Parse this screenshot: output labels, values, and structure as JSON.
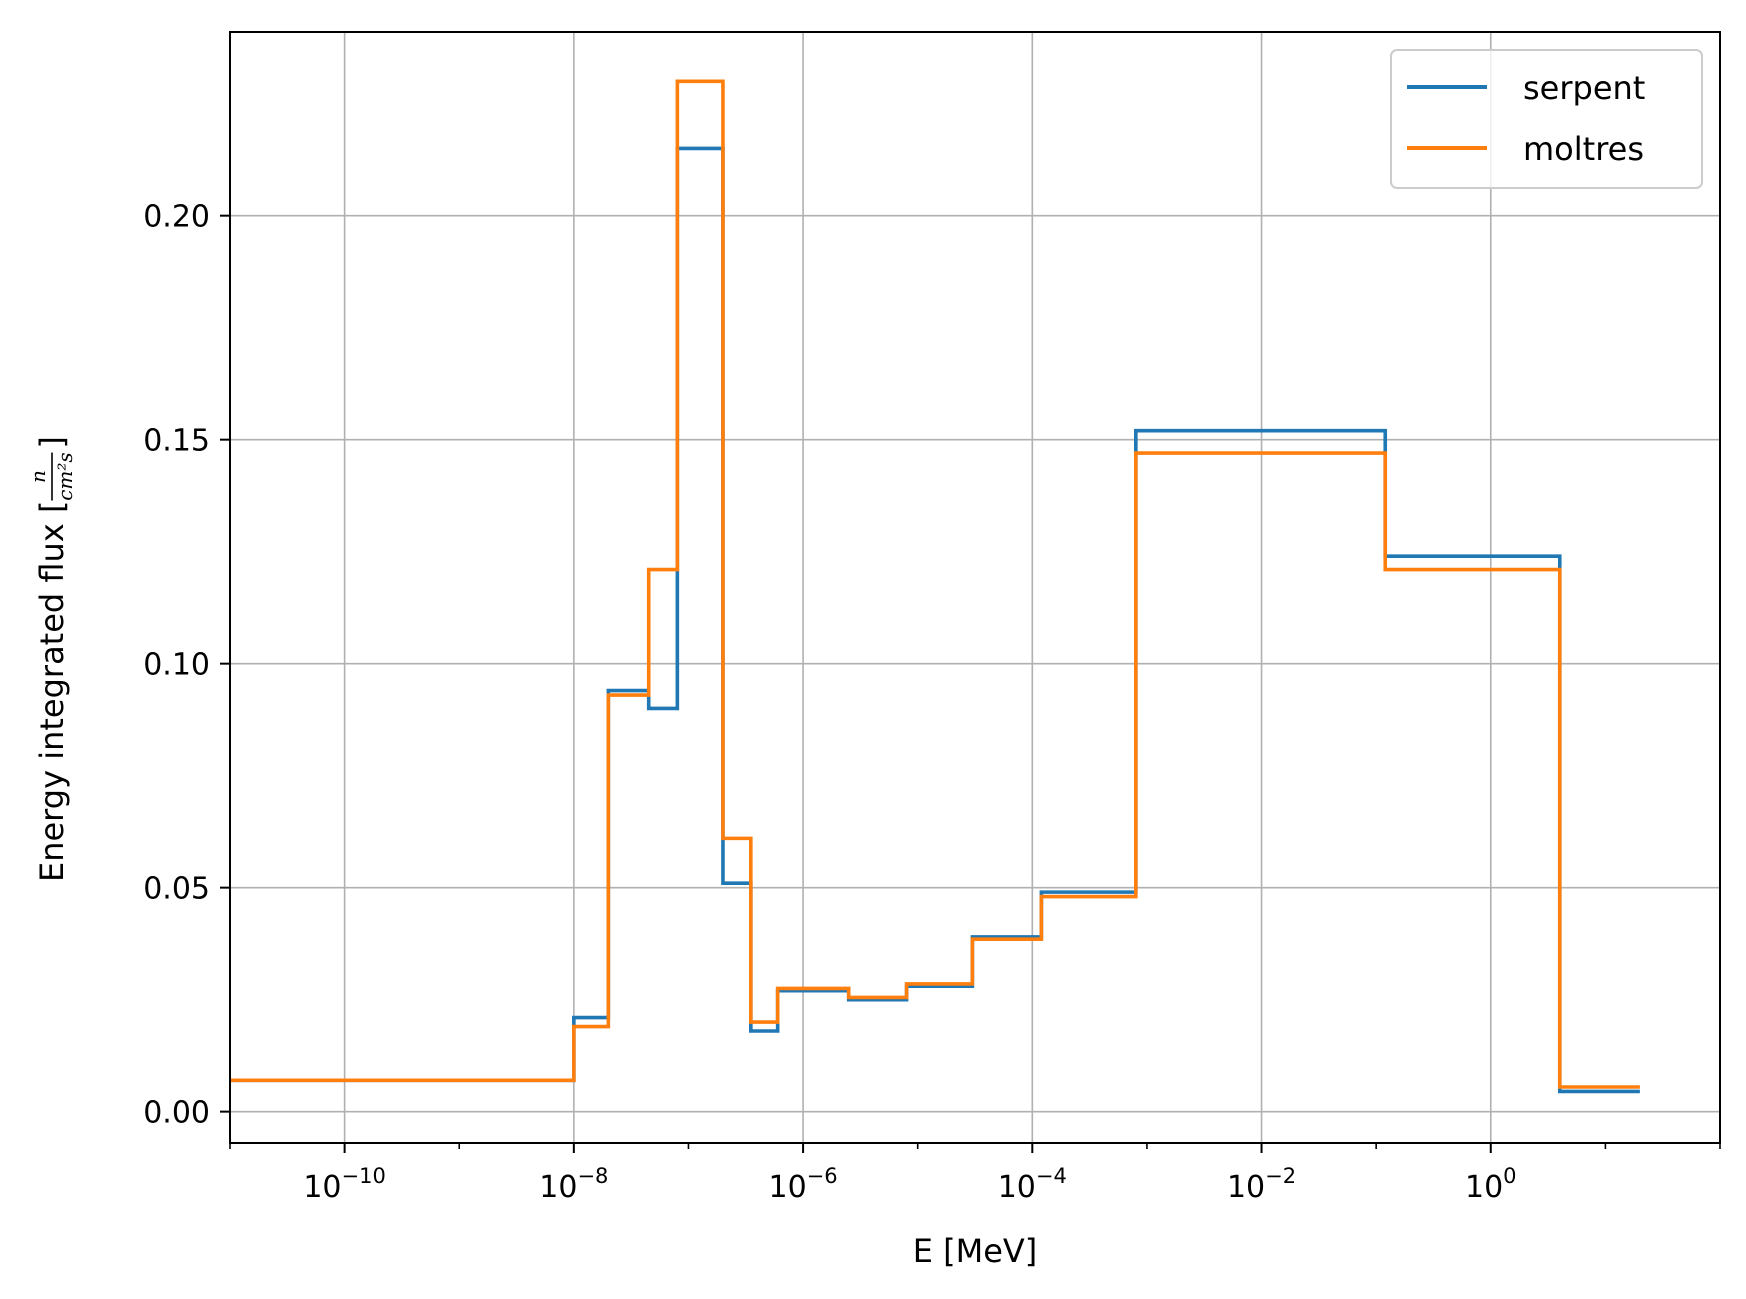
{
  "chart_data": {
    "type": "line",
    "drawstyle": "steps",
    "xscale": "log",
    "xlabel": "E [MeV]",
    "ylabel_prefix": "Energy integrated flux [",
    "ylabel_unit_num": "n",
    "ylabel_unit_den": "cm²s",
    "ylabel_suffix": "]",
    "xlim": [
      1e-11,
      100
    ],
    "ylim": [
      -0.007,
      0.241
    ],
    "xticks": [
      {
        "value": 1e-10,
        "base": "10",
        "exp": "−10"
      },
      {
        "value": 1e-08,
        "base": "10",
        "exp": "−8"
      },
      {
        "value": 1e-06,
        "base": "10",
        "exp": "−6"
      },
      {
        "value": 0.0001,
        "base": "10",
        "exp": "−4"
      },
      {
        "value": 0.01,
        "base": "10",
        "exp": "−2"
      },
      {
        "value": 1,
        "base": "10",
        "exp": "0"
      }
    ],
    "yticks": [
      {
        "value": 0.0,
        "label": "0.00"
      },
      {
        "value": 0.05,
        "label": "0.05"
      },
      {
        "value": 0.1,
        "label": "0.10"
      },
      {
        "value": 0.15,
        "label": "0.15"
      },
      {
        "value": 0.2,
        "label": "0.20"
      }
    ],
    "grid": true,
    "legend_position": "top-right",
    "edges": [
      1e-11,
      1e-08,
      2e-08,
      4.5e-08,
      8e-08,
      2e-07,
      3.5e-07,
      6e-07,
      2.5e-06,
      8e-06,
      3e-05,
      0.00012,
      0.0008,
      0.12,
      4.0,
      20.0
    ],
    "series": [
      {
        "name": "serpent",
        "color": "#1f77b4",
        "values": [
          0.007,
          0.021,
          0.094,
          0.09,
          0.215,
          0.051,
          0.018,
          0.027,
          0.025,
          0.028,
          0.039,
          0.049,
          0.152,
          0.124,
          0.0045
        ]
      },
      {
        "name": "moltres",
        "color": "#ff7f0e",
        "values": [
          0.007,
          0.019,
          0.093,
          0.121,
          0.23,
          0.061,
          0.02,
          0.0275,
          0.0255,
          0.0285,
          0.0385,
          0.048,
          0.147,
          0.121,
          0.0055
        ]
      }
    ]
  }
}
